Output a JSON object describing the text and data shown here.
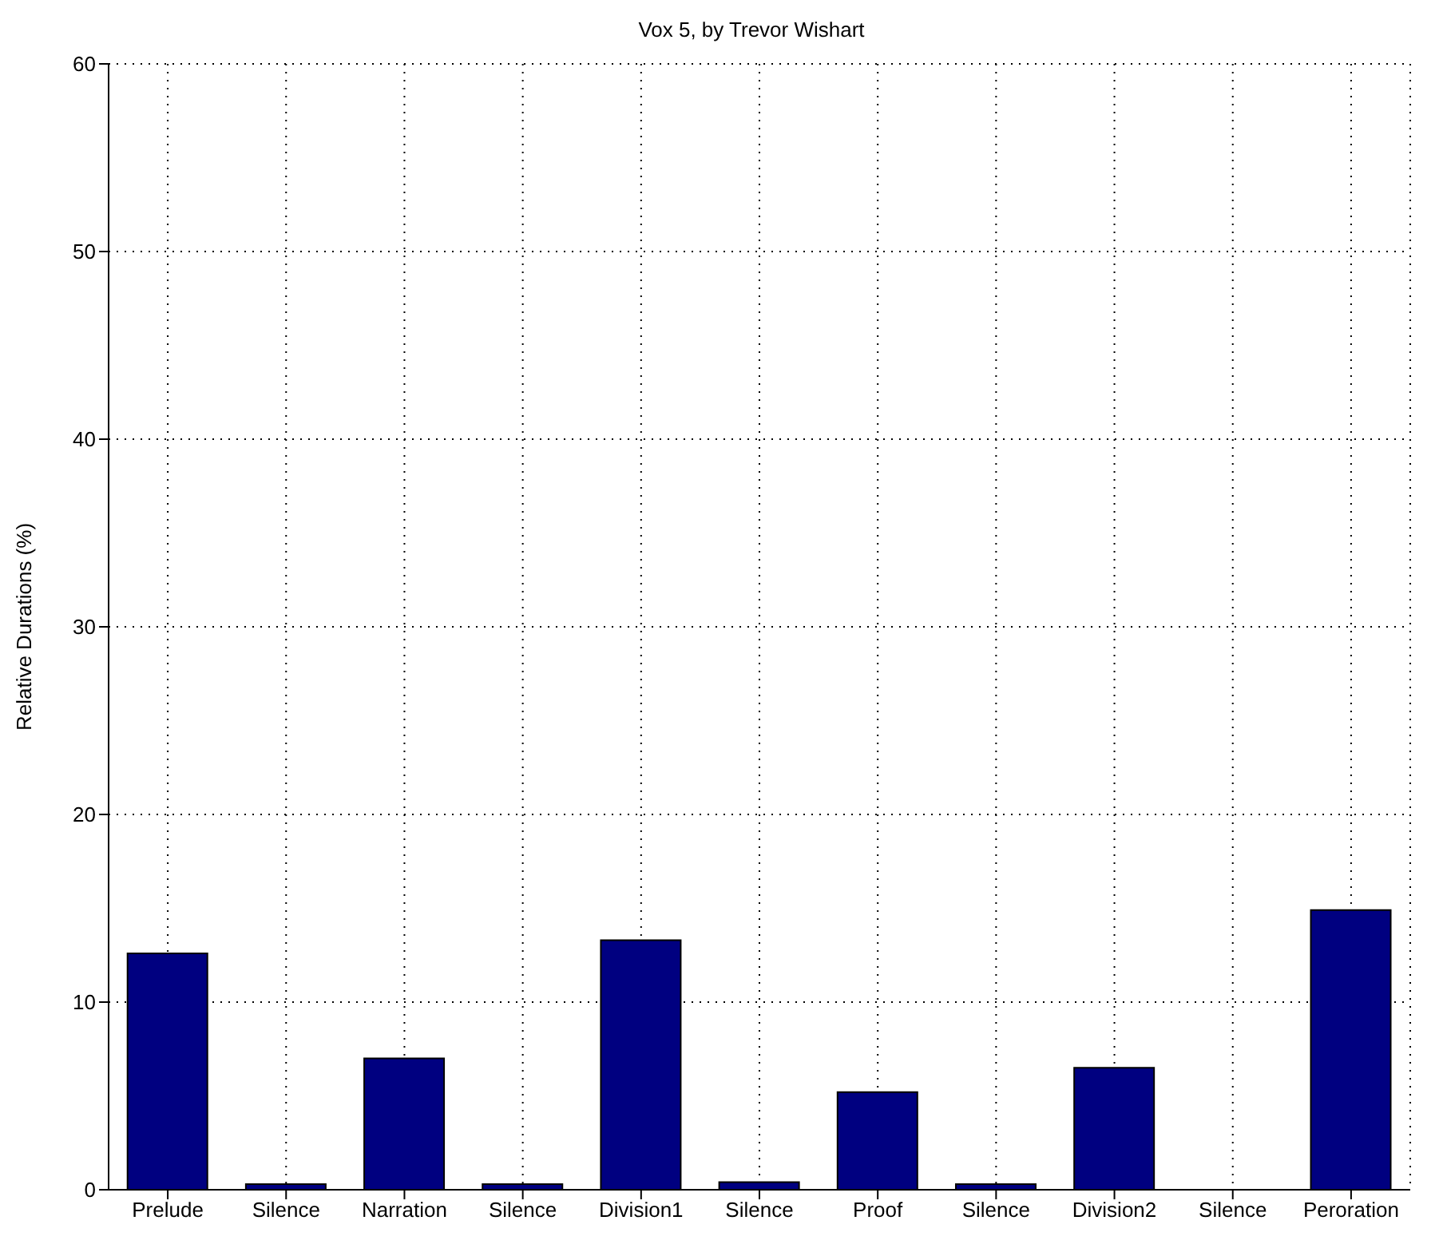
{
  "chart_data": {
    "type": "bar",
    "title": "Vox 5, by Trevor Wishart",
    "ylabel": "Relative Durations (%)",
    "categories": [
      "Prelude",
      "Silence",
      "Narration",
      "Silence",
      "Division1",
      "Silence",
      "Proof",
      "Silence",
      "Division2",
      "Silence",
      "Peroration"
    ],
    "values": [
      12.6,
      0.3,
      7.0,
      0.3,
      13.3,
      0.4,
      5.2,
      0.3,
      6.5,
      0,
      14.9
    ],
    "color": "#000080",
    "ylim": [
      0,
      60
    ],
    "yticks": [
      0,
      10,
      20,
      30,
      40,
      50,
      60
    ],
    "grid": true,
    "legend": false
  }
}
